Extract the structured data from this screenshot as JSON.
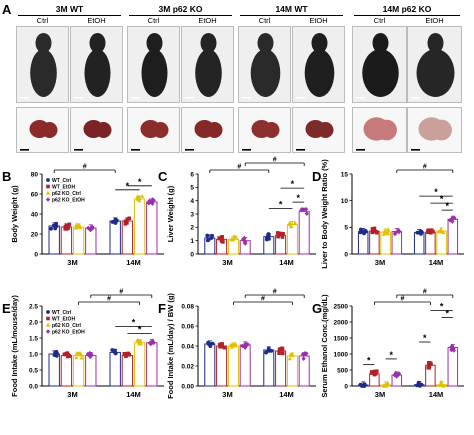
{
  "panel_a": {
    "letter": "A",
    "groups": [
      {
        "title": "3M WT",
        "conditions": [
          "Ctrl",
          "EtOH"
        ]
      },
      {
        "title": "3M p62 KO",
        "conditions": [
          "Ctrl",
          "EtOH"
        ]
      },
      {
        "title": "14M WT",
        "conditions": [
          "Ctrl",
          "EtOH"
        ]
      },
      {
        "title": "14M p62 KO",
        "conditions": [
          "Ctrl",
          "EtOH"
        ]
      }
    ]
  },
  "colors": {
    "WT_Ctrl": "#1f2a8a",
    "WT_EtOH": "#b3202a",
    "p62_KO_Ctrl": "#e0c000",
    "p62_KO_EtOH": "#9a2fa8"
  },
  "chart_data": [
    {
      "letter": "B",
      "type": "bar",
      "ylabel": "Body Weight (g)",
      "ylim": [
        0,
        80
      ],
      "yticks": [
        0,
        20,
        40,
        60,
        80
      ],
      "groups": [
        "3M",
        "14M"
      ],
      "legend": [
        "WT_Ctrl",
        "WT_EtOH",
        "p62 KO_Ctrl",
        "p62 KO_EtOH"
      ],
      "series": [
        {
          "name": "WT_Ctrl",
          "values": [
            28,
            33
          ]
        },
        {
          "name": "WT_EtOH",
          "values": [
            27,
            33
          ]
        },
        {
          "name": "p62 KO_Ctrl",
          "values": [
            27,
            55
          ]
        },
        {
          "name": "p62 KO_EtOH",
          "values": [
            26,
            52
          ]
        }
      ],
      "annotations": [
        {
          "text": "#",
          "from": [
            0,
            0
          ],
          "to": [
            1,
            0
          ]
        },
        {
          "text": "*",
          "from": [
            1,
            0
          ],
          "to": [
            1,
            2
          ]
        },
        {
          "text": "*",
          "from": [
            1,
            1
          ],
          "to": [
            1,
            3
          ]
        }
      ]
    },
    {
      "letter": "C",
      "type": "bar",
      "ylabel": "Liver Weight (g)",
      "ylim": [
        0,
        6
      ],
      "yticks": [
        0,
        1,
        2,
        3,
        4,
        5,
        6
      ],
      "groups": [
        "3M",
        "14M"
      ],
      "series": [
        {
          "name": "WT_Ctrl",
          "values": [
            1.2,
            1.3
          ]
        },
        {
          "name": "WT_EtOH",
          "values": [
            1.1,
            1.4
          ]
        },
        {
          "name": "p62 KO_Ctrl",
          "values": [
            1.1,
            2.2
          ]
        },
        {
          "name": "p62 KO_EtOH",
          "values": [
            1.0,
            3.2
          ]
        }
      ],
      "annotations": [
        {
          "text": "#",
          "from": [
            0,
            0
          ],
          "to": [
            1,
            0
          ]
        },
        {
          "text": "#",
          "from": [
            0,
            3
          ],
          "to": [
            1,
            3
          ]
        },
        {
          "text": "*",
          "from": [
            1,
            0
          ],
          "to": [
            1,
            2
          ]
        },
        {
          "text": "*",
          "from": [
            1,
            1
          ],
          "to": [
            1,
            3
          ]
        },
        {
          "text": "*",
          "from": [
            1,
            2
          ],
          "to": [
            1,
            3
          ]
        }
      ]
    },
    {
      "letter": "D",
      "type": "bar",
      "ylabel": "Liver to Body Weight Ratio (%)",
      "ylim": [
        0,
        15
      ],
      "yticks": [
        0,
        5,
        10,
        15
      ],
      "groups": [
        "3M",
        "14M"
      ],
      "series": [
        {
          "name": "WT_Ctrl",
          "values": [
            4.2,
            4.0
          ]
        },
        {
          "name": "WT_EtOH",
          "values": [
            4.3,
            4.1
          ]
        },
        {
          "name": "p62 KO_Ctrl",
          "values": [
            4.1,
            4.3
          ]
        },
        {
          "name": "p62 KO_EtOH",
          "values": [
            4.2,
            6.5
          ]
        }
      ],
      "annotations": [
        {
          "text": "#",
          "from": [
            0,
            3
          ],
          "to": [
            1,
            3
          ]
        },
        {
          "text": "*",
          "from": [
            1,
            0
          ],
          "to": [
            1,
            3
          ]
        },
        {
          "text": "*",
          "from": [
            1,
            1
          ],
          "to": [
            1,
            3
          ]
        },
        {
          "text": "*",
          "from": [
            1,
            2
          ],
          "to": [
            1,
            3
          ]
        }
      ]
    },
    {
      "letter": "E",
      "type": "bar",
      "ylabel": "Food Intake (mL/mouse/day)",
      "ylim": [
        0,
        2.5
      ],
      "yticks": [
        0.0,
        0.5,
        1.0,
        1.5,
        2.0,
        2.5
      ],
      "groups": [
        "3M",
        "14M"
      ],
      "legend": [
        "WT_Ctrl",
        "WT_EtOH",
        "p62 KO_Ctrl",
        "p62 KO_EtOH"
      ],
      "series": [
        {
          "name": "WT_Ctrl",
          "values": [
            1.0,
            1.05
          ]
        },
        {
          "name": "WT_EtOH",
          "values": [
            0.95,
            0.95
          ]
        },
        {
          "name": "p62 KO_Ctrl",
          "values": [
            0.95,
            1.35
          ]
        },
        {
          "name": "p62 KO_EtOH",
          "values": [
            0.95,
            1.35
          ]
        }
      ],
      "annotations": [
        {
          "text": "#",
          "from": [
            0,
            2
          ],
          "to": [
            1,
            2
          ]
        },
        {
          "text": "#",
          "from": [
            0,
            3
          ],
          "to": [
            1,
            3
          ]
        },
        {
          "text": "*",
          "from": [
            1,
            0
          ],
          "to": [
            1,
            3
          ]
        },
        {
          "text": "*",
          "from": [
            1,
            1
          ],
          "to": [
            1,
            3
          ]
        }
      ]
    },
    {
      "letter": "F",
      "type": "bar",
      "ylabel": "Food Intake (mL/day) / BW (g)",
      "ylim": [
        0,
        0.08
      ],
      "yticks": [
        0.0,
        0.02,
        0.04,
        0.06,
        0.08
      ],
      "groups": [
        "3M",
        "14M"
      ],
      "series": [
        {
          "name": "WT_Ctrl",
          "values": [
            0.042,
            0.036
          ]
        },
        {
          "name": "WT_EtOH",
          "values": [
            0.04,
            0.035
          ]
        },
        {
          "name": "p62 KO_Ctrl",
          "values": [
            0.04,
            0.03
          ]
        },
        {
          "name": "p62 KO_EtOH",
          "values": [
            0.041,
            0.03
          ]
        }
      ],
      "annotations": [
        {
          "text": "#",
          "from": [
            0,
            2
          ],
          "to": [
            1,
            2
          ]
        },
        {
          "text": "#",
          "from": [
            0,
            3
          ],
          "to": [
            1,
            3
          ]
        }
      ]
    },
    {
      "letter": "G",
      "type": "bar",
      "ylabel": "Serum Ethanol Conc.(mg/dL)",
      "ylim": [
        0,
        2500
      ],
      "yticks": [
        0,
        500,
        1000,
        1500,
        2000,
        2500
      ],
      "groups": [
        "3M",
        "14M"
      ],
      "series": [
        {
          "name": "WT_Ctrl",
          "values": [
            30,
            40
          ]
        },
        {
          "name": "WT_EtOH",
          "values": [
            380,
            650
          ]
        },
        {
          "name": "p62 KO_Ctrl",
          "values": [
            30,
            40
          ]
        },
        {
          "name": "p62 KO_EtOH",
          "values": [
            340,
            1200
          ]
        }
      ],
      "annotations": [
        {
          "text": "#",
          "from": [
            0,
            1
          ],
          "to": [
            1,
            1
          ]
        },
        {
          "text": "#",
          "from": [
            0,
            3
          ],
          "to": [
            1,
            3
          ]
        },
        {
          "text": "*",
          "from": [
            0,
            0
          ],
          "to": [
            0,
            1
          ]
        },
        {
          "text": "*",
          "from": [
            0,
            2
          ],
          "to": [
            0,
            3
          ]
        },
        {
          "text": "*",
          "from": [
            1,
            0
          ],
          "to": [
            1,
            1
          ]
        },
        {
          "text": "*",
          "from": [
            1,
            1
          ],
          "to": [
            1,
            3
          ]
        },
        {
          "text": "*",
          "from": [
            1,
            2
          ],
          "to": [
            1,
            3
          ]
        }
      ]
    }
  ]
}
